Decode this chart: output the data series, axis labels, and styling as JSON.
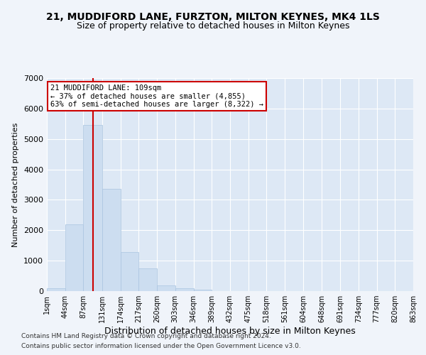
{
  "title": "21, MUDDIFORD LANE, FURZTON, MILTON KEYNES, MK4 1LS",
  "subtitle": "Size of property relative to detached houses in Milton Keynes",
  "xlabel": "Distribution of detached houses by size in Milton Keynes",
  "ylabel": "Number of detached properties",
  "footnote1": "Contains HM Land Registry data © Crown copyright and database right 2024.",
  "footnote2": "Contains public sector information licensed under the Open Government Licence v3.0.",
  "bar_color": "#ccddf0",
  "bar_edgecolor": "#aac4e0",
  "background_color": "#dde8f5",
  "grid_color": "#ffffff",
  "fig_background": "#f0f4fa",
  "annotation_line1": "21 MUDDIFORD LANE: 109sqm",
  "annotation_line2": "← 37% of detached houses are smaller (4,855)",
  "annotation_line3": "63% of semi-detached houses are larger (8,322) →",
  "annotation_box_color": "#ffffff",
  "annotation_box_edgecolor": "#cc0000",
  "vline_x": 109,
  "vline_color": "#cc0000",
  "bin_edges": [
    1,
    44,
    87,
    131,
    174,
    217,
    260,
    303,
    346,
    389,
    432,
    475,
    518,
    561,
    604,
    648,
    691,
    734,
    777,
    820,
    863
  ],
  "bar_heights": [
    90,
    2200,
    5450,
    3350,
    1280,
    750,
    195,
    100,
    45,
    8,
    3,
    1,
    0,
    0,
    0,
    0,
    0,
    0,
    0,
    0
  ],
  "ylim": [
    0,
    7000
  ],
  "yticks": [
    0,
    1000,
    2000,
    3000,
    4000,
    5000,
    6000,
    7000
  ],
  "title_fontsize": 10,
  "subtitle_fontsize": 9,
  "xlabel_fontsize": 9,
  "ylabel_fontsize": 8,
  "tick_fontsize": 7,
  "annotation_fontsize": 7.5,
  "footnote_fontsize": 6.5
}
